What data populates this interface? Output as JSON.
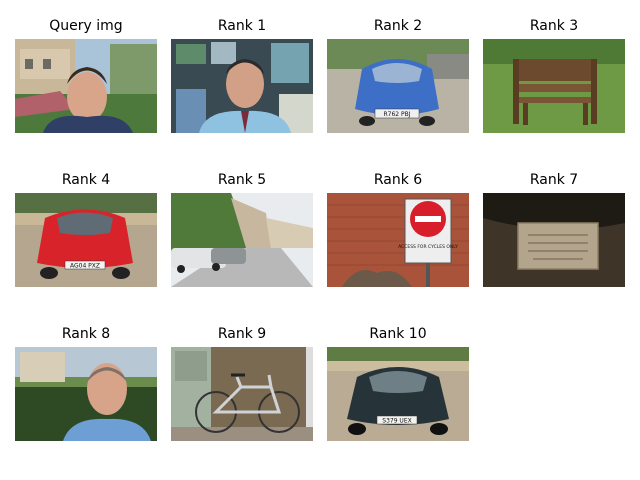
{
  "panels": [
    {
      "title": "Query img",
      "subject": "man-portrait-outdoor"
    },
    {
      "title": "Rank 1",
      "subject": "man-portrait-office"
    },
    {
      "title": "Rank 2",
      "subject": "blue-car",
      "plate": "R762 PBJ"
    },
    {
      "title": "Rank 3",
      "subject": "wooden-bench"
    },
    {
      "title": "Rank 4",
      "subject": "red-car",
      "plate": "AG04 PXZ"
    },
    {
      "title": "Rank 5",
      "subject": "street-with-cars"
    },
    {
      "title": "Rank 6",
      "subject": "no-entry-sign",
      "sign_text": "ACCESS FOR CYCLES ONLY"
    },
    {
      "title": "Rank 7",
      "subject": "wall-plaque"
    },
    {
      "title": "Rank 8",
      "subject": "man-portrait-garden"
    },
    {
      "title": "Rank 9",
      "subject": "bicycle"
    },
    {
      "title": "Rank 10",
      "subject": "dark-car",
      "plate": "S379 UEX"
    }
  ]
}
